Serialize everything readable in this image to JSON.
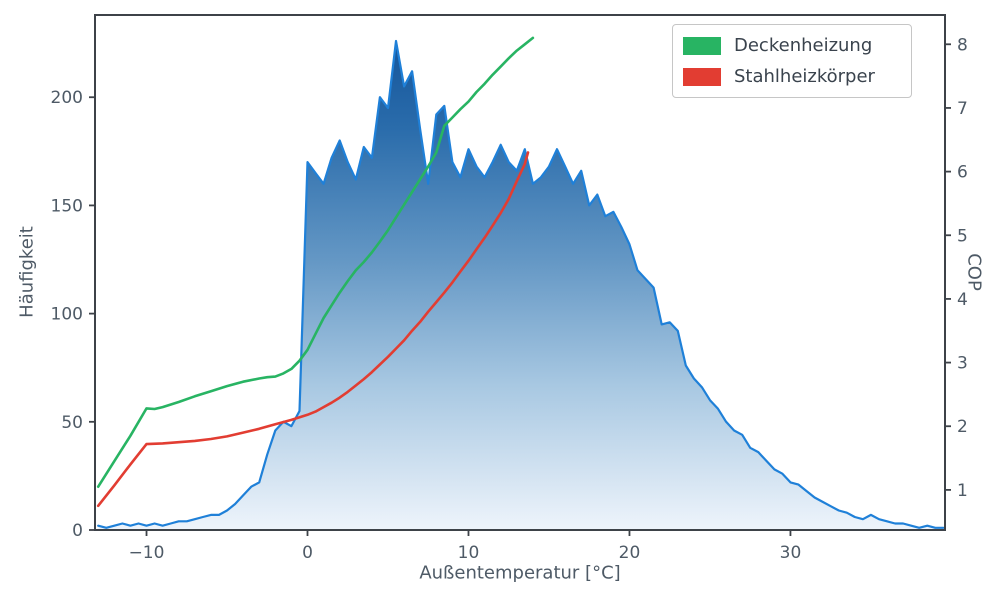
{
  "chart_data": {
    "type": "area",
    "title": "",
    "xlabel": "Außentemperatur [°C]",
    "ylabel_left": "Häufigkeit",
    "ylabel_right": "COP",
    "xlim": [
      -13.2,
      39.6
    ],
    "ylim_left": [
      0,
      238
    ],
    "ylim_right": [
      0.37,
      8.46
    ],
    "grid": false,
    "legend_position": "upper right",
    "x_ticks": {
      "values": [
        -10,
        0,
        10,
        20,
        30
      ],
      "labels": [
        "−10",
        "0",
        "10",
        "20",
        "30"
      ]
    },
    "y_ticks_left": {
      "values": [
        0,
        50,
        100,
        150,
        200
      ],
      "labels": [
        "0",
        "50",
        "100",
        "150",
        "200"
      ]
    },
    "y_ticks_right": {
      "values": [
        1,
        2,
        3,
        4,
        5,
        6,
        7,
        8
      ],
      "labels": [
        "1",
        "2",
        "3",
        "4",
        "5",
        "6",
        "7",
        "8"
      ]
    },
    "histogram": {
      "axis": "left",
      "x_start": -13,
      "x_step": 0.5,
      "values": [
        2,
        1,
        2,
        3,
        2,
        3,
        2,
        3,
        2,
        3,
        4,
        4,
        5,
        6,
        7,
        7,
        9,
        12,
        16,
        20,
        22,
        35,
        46,
        50,
        48,
        55,
        170,
        165,
        160,
        172,
        180,
        170,
        162,
        177,
        172,
        200,
        195,
        226,
        205,
        212,
        185,
        160,
        192,
        196,
        170,
        163,
        176,
        168,
        163,
        170,
        178,
        170,
        166,
        176,
        160,
        163,
        168,
        176,
        168,
        160,
        166,
        150,
        155,
        145,
        147,
        140,
        132,
        120,
        116,
        112,
        95,
        96,
        92,
        76,
        70,
        66,
        60,
        56,
        50,
        46,
        44,
        38,
        36,
        32,
        28,
        26,
        22,
        21,
        18,
        15,
        13,
        11,
        9,
        8,
        6,
        5,
        7,
        5,
        4,
        3,
        3,
        2,
        1,
        2,
        1,
        1
      ],
      "line_color": "#1f80d8",
      "fill_gradient": [
        {
          "offset": "0%",
          "color": "#0f4f97"
        },
        {
          "offset": "22%",
          "color": "#2a6cab"
        },
        {
          "offset": "48%",
          "color": "#6598c5"
        },
        {
          "offset": "72%",
          "color": "#a8c8e2"
        },
        {
          "offset": "100%",
          "color": "#eef4fb"
        }
      ]
    },
    "series": [
      {
        "name": "Deckenheizung",
        "axis": "right",
        "color": "#28b463",
        "points": [
          [
            -13,
            1.05
          ],
          [
            -12,
            1.45
          ],
          [
            -11,
            1.85
          ],
          [
            -10,
            2.28
          ],
          [
            -9.5,
            2.27
          ],
          [
            -9,
            2.3
          ],
          [
            -8,
            2.38
          ],
          [
            -7,
            2.47
          ],
          [
            -6,
            2.55
          ],
          [
            -5,
            2.63
          ],
          [
            -4,
            2.7
          ],
          [
            -3,
            2.75
          ],
          [
            -2.5,
            2.77
          ],
          [
            -2,
            2.78
          ],
          [
            -1.5,
            2.83
          ],
          [
            -1,
            2.9
          ],
          [
            -0.5,
            3.03
          ],
          [
            0,
            3.2
          ],
          [
            0.5,
            3.45
          ],
          [
            1,
            3.7
          ],
          [
            1.5,
            3.9
          ],
          [
            2,
            4.1
          ],
          [
            2.5,
            4.28
          ],
          [
            3,
            4.45
          ],
          [
            3.5,
            4.58
          ],
          [
            4,
            4.73
          ],
          [
            4.5,
            4.9
          ],
          [
            5,
            5.08
          ],
          [
            5.5,
            5.28
          ],
          [
            6,
            5.48
          ],
          [
            6.5,
            5.68
          ],
          [
            7,
            5.88
          ],
          [
            7.5,
            6.08
          ],
          [
            8,
            6.3
          ],
          [
            8.5,
            6.72
          ],
          [
            9,
            6.85
          ],
          [
            9.5,
            6.98
          ],
          [
            10,
            7.1
          ],
          [
            10.5,
            7.25
          ],
          [
            11,
            7.38
          ],
          [
            11.5,
            7.52
          ],
          [
            12,
            7.65
          ],
          [
            12.5,
            7.78
          ],
          [
            13,
            7.9
          ],
          [
            13.5,
            8.0
          ],
          [
            14,
            8.1
          ]
        ]
      },
      {
        "name": "Stahlheizkörper",
        "axis": "right",
        "color": "#e23d32",
        "points": [
          [
            -13,
            0.75
          ],
          [
            -12,
            1.07
          ],
          [
            -11,
            1.4
          ],
          [
            -10,
            1.72
          ],
          [
            -9,
            1.73
          ],
          [
            -8,
            1.75
          ],
          [
            -7,
            1.77
          ],
          [
            -6,
            1.8
          ],
          [
            -5,
            1.84
          ],
          [
            -4,
            1.9
          ],
          [
            -3,
            1.96
          ],
          [
            -2,
            2.03
          ],
          [
            -1,
            2.1
          ],
          [
            0,
            2.18
          ],
          [
            0.5,
            2.23
          ],
          [
            1,
            2.3
          ],
          [
            1.5,
            2.37
          ],
          [
            2,
            2.45
          ],
          [
            2.5,
            2.54
          ],
          [
            3,
            2.64
          ],
          [
            3.5,
            2.74
          ],
          [
            4,
            2.85
          ],
          [
            4.5,
            2.97
          ],
          [
            5,
            3.09
          ],
          [
            5.5,
            3.22
          ],
          [
            6,
            3.35
          ],
          [
            6.5,
            3.5
          ],
          [
            7,
            3.64
          ],
          [
            7.5,
            3.8
          ],
          [
            8,
            3.95
          ],
          [
            8.5,
            4.1
          ],
          [
            9,
            4.26
          ],
          [
            9.5,
            4.43
          ],
          [
            10,
            4.6
          ],
          [
            10.5,
            4.78
          ],
          [
            11,
            4.96
          ],
          [
            11.5,
            5.15
          ],
          [
            12,
            5.35
          ],
          [
            12.5,
            5.57
          ],
          [
            13,
            5.85
          ],
          [
            13.5,
            6.12
          ],
          [
            13.7,
            6.3
          ]
        ]
      }
    ],
    "styles": {
      "spine_color": "#3d4248",
      "text_color": "#4e5a66",
      "background": "#ffffff"
    }
  }
}
